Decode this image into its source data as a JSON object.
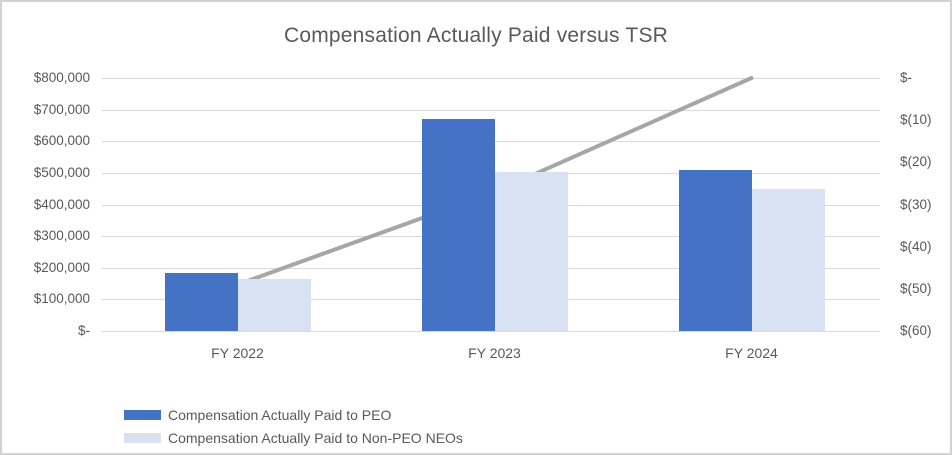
{
  "chart_data": {
    "type": "combo-bar-line",
    "title": "Compensation Actually Paid versus TSR",
    "categories": [
      "FY 2022",
      "FY 2023",
      "FY 2024"
    ],
    "bar_series": [
      {
        "name": "Compensation Actually Paid to PEO",
        "slug": "peo",
        "color": "#4472c4",
        "axis": "left",
        "values": [
          182000,
          670000,
          510000
        ]
      },
      {
        "name": "Compensation Actually Paid to Non-PEO NEOs",
        "slug": "non-peo-neos",
        "color": "#d9e2f3",
        "axis": "left",
        "values": [
          165000,
          502000,
          450000
        ]
      }
    ],
    "line_series": {
      "name": "TSR",
      "color": "#a6a6a6",
      "axis": "right",
      "values": [
        -49,
        -27,
        0
      ]
    },
    "left_axis": {
      "min": 0,
      "max": 800000,
      "step": 100000,
      "tick_labels": [
        "$800,000",
        "$700,000",
        "$600,000",
        "$500,000",
        "$400,000",
        "$300,000",
        "$200,000",
        "$100,000",
        "$-"
      ]
    },
    "right_axis": {
      "min": -60,
      "max": 0,
      "step": 10,
      "tick_labels": [
        "$-",
        "$(10)",
        "$(20)",
        "$(30)",
        "$(40)",
        "$(50)",
        "$(60)"
      ]
    },
    "grid": true,
    "legend_position": "bottom-left",
    "colors": {
      "text": "#595959",
      "gridline": "#d9d9d9",
      "frame_border": "#d2d2d2",
      "background": "#ffffff"
    }
  }
}
